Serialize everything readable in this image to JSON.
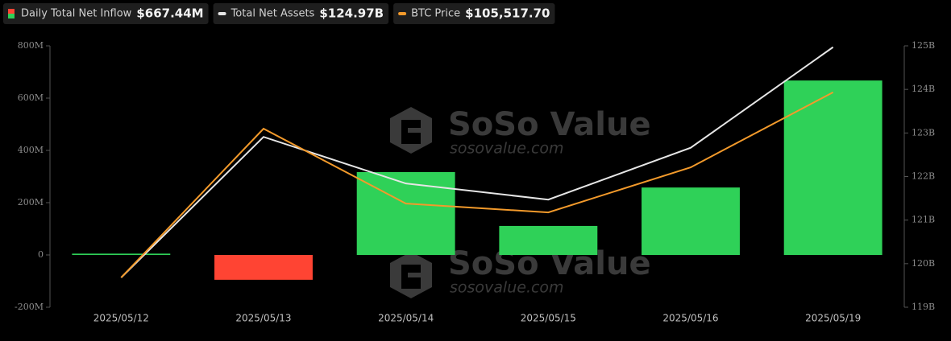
{
  "chart_data": {
    "type": "bar-line",
    "categories": [
      "2025/05/12",
      "2025/05/13",
      "2025/05/14",
      "2025/05/15",
      "2025/05/16",
      "2025/05/19"
    ],
    "series": [
      {
        "name": "Daily Total Net Inflow",
        "legend_value": "$667.44M",
        "type": "bar",
        "color": "#2fd158",
        "negative_color": "#ff4433",
        "values": [
          5,
          -95,
          317,
          111,
          258,
          667.44
        ]
      },
      {
        "name": "Total Net Assets",
        "legend_value": "$124.97B",
        "type": "line",
        "axis": "y2",
        "color": "#e6e6e6",
        "values": [
          119.68,
          122.91,
          121.84,
          121.47,
          122.66,
          124.97
        ]
      },
      {
        "name": "BTC Price",
        "legend_value": "$105,517.70",
        "type": "line",
        "axis": "y3",
        "color": "#f39a2b",
        "values": [
          102796,
          104983,
          103883,
          103753,
          104415,
          105517.7
        ]
      }
    ],
    "ylim": [
      -200,
      800
    ],
    "yticks": [
      {
        "value": -200,
        "label": "-200M"
      },
      0,
      {
        "value": 200,
        "label": "200M"
      },
      {
        "value": 400,
        "label": "400M"
      },
      {
        "value": 600,
        "label": "600M"
      },
      {
        "value": 800,
        "label": "800M"
      }
    ],
    "y2lim": [
      119,
      125
    ],
    "y2ticks": [
      {
        "value": 119,
        "label": "119B"
      },
      {
        "value": 120,
        "label": "120B"
      },
      {
        "value": 121,
        "label": "121B"
      },
      {
        "value": 122,
        "label": "122B"
      },
      {
        "value": 123,
        "label": "123B"
      },
      {
        "value": 124,
        "label": "124B"
      },
      {
        "value": 125,
        "label": "125B"
      }
    ],
    "y3lim": [
      102360,
      106200
    ],
    "watermark": "SoSo Value",
    "watermark_url": "sosovalue.com"
  }
}
